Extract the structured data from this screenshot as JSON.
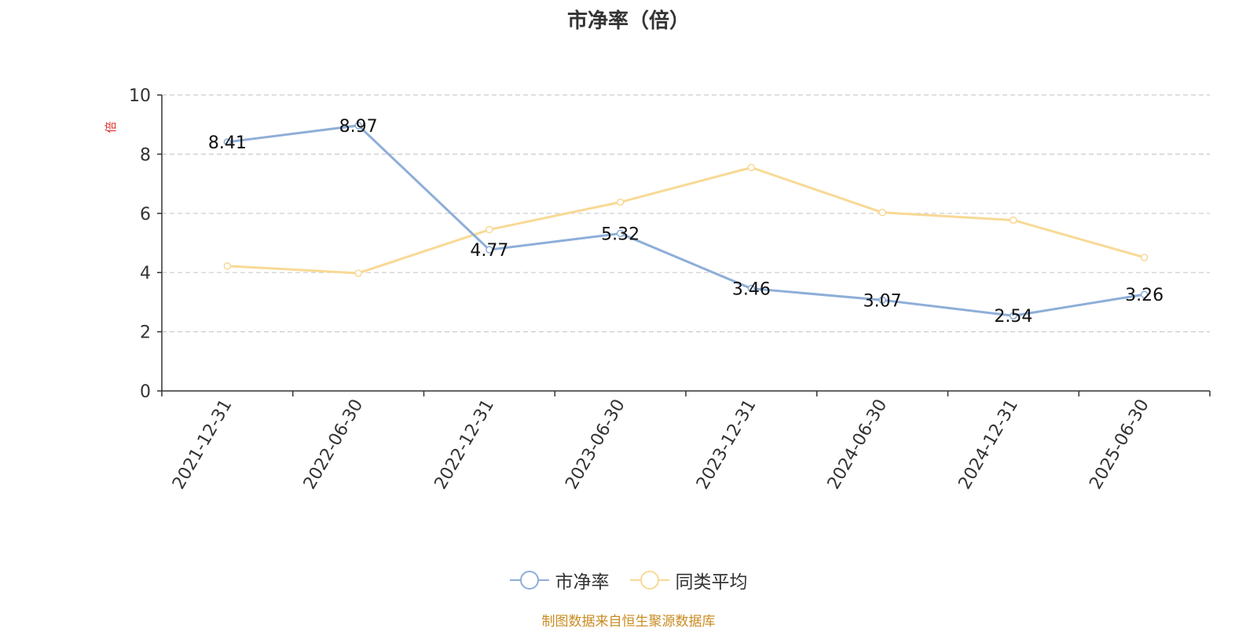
{
  "chart_data": {
    "type": "line",
    "title": "市净率（倍）",
    "ylabel": "倍",
    "xlabel": "",
    "categories": [
      "2021-12-31",
      "2022-06-30",
      "2022-12-31",
      "2023-06-30",
      "2023-12-31",
      "2024-06-30",
      "2024-12-31",
      "2025-06-30"
    ],
    "ylim": [
      0,
      10
    ],
    "yticks": [
      "0",
      "2",
      "4",
      "6",
      "8",
      "10"
    ],
    "grid": true,
    "legend_position": "bottom",
    "series": [
      {
        "name": "市净率",
        "color": "#8eaed8",
        "values": [
          8.41,
          8.97,
          4.77,
          5.32,
          3.46,
          3.07,
          2.54,
          3.26
        ],
        "labels": [
          "8.41",
          "8.97",
          "4.77",
          "5.32",
          "3.46",
          "3.07",
          "2.54",
          "3.26"
        ]
      },
      {
        "name": "同类平均",
        "color": "#f8d995",
        "values": [
          4.22,
          3.98,
          5.45,
          6.38,
          7.55,
          6.03,
          5.77,
          4.51
        ]
      }
    ]
  },
  "source_note": "制图数据来自恒生聚源数据库"
}
